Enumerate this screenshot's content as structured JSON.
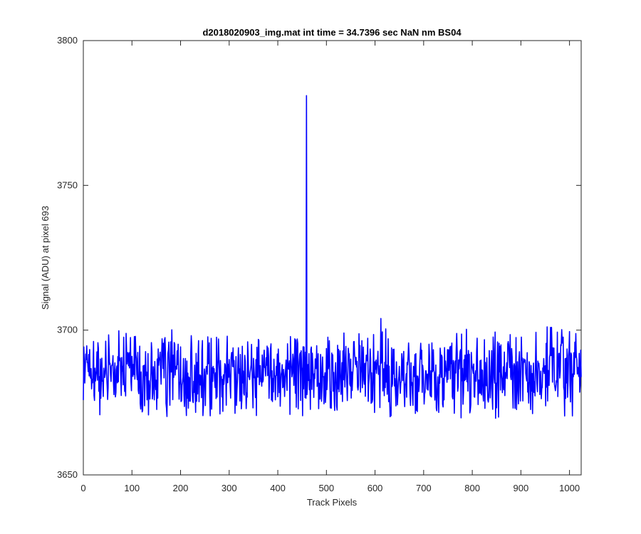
{
  "chart_data": {
    "type": "line",
    "title": "d2018020903_img.mat int time = 34.7396 sec  NaN nm BS04",
    "xlabel": "Track Pixels",
    "ylabel": "Signal (ADU) at pixel 693",
    "xlim": [
      0,
      1024
    ],
    "ylim": [
      3650,
      3800
    ],
    "xticks": [
      0,
      100,
      200,
      300,
      400,
      500,
      600,
      700,
      800,
      900,
      1000
    ],
    "yticks": [
      3650,
      3700,
      3750,
      3800
    ],
    "grid": false,
    "series": [
      {
        "color": "#0000ff",
        "baseline": 3685,
        "noise_amplitude": 25,
        "spike": {
          "x": 459,
          "y": 3781
        }
      }
    ]
  }
}
